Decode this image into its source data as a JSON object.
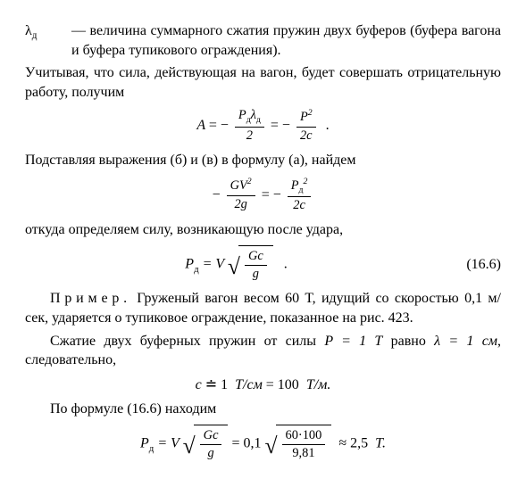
{
  "def": {
    "term_sym": "λ",
    "term_sub": "д",
    "body": "— величина суммарного сжатия пружин двух буферов (буфера вагона и буфера тупикового ограждения)."
  },
  "p1": "Учитывая, что сила, действующая на вагон, будет совершать отрицательную работу, получим",
  "p2": "Подставляя выражения (б) и (в) в формулу (а), найдем",
  "p3": "откуда определяем силу, возникающую после удара,",
  "eq_num": "(16.6)",
  "example_label": "Пример.",
  "p4": " Груженый вагон весом 60 Т, идущий со скоростью 0,1 м/сек, ударяется о тупиковое ограждение, показанное на рис. 423.",
  "p5_a": "Сжатие двух буферных пружин от силы ",
  "p5_b": "P = 1 Т",
  "p5_c": " равно ",
  "p5_d": "λ = 1 см",
  "p5_e": ", следовательно,",
  "p6": "По формуле (16.6) находим",
  "eq1": {
    "A": "A",
    "eq": "= −",
    "f1_num_P": "P",
    "f1_num_sub": "д",
    "f1_num_l": "λ",
    "f1_num_lsub": "д",
    "f1_den": "2",
    "mid": "= −",
    "f2_num_P": "P",
    "f2_num_sup": "2",
    "f2_den": "2c",
    "dot": "."
  },
  "eq2": {
    "pre": "−",
    "f1_num_G": "GV",
    "f1_num_sup": "2",
    "f1_den": "2g",
    "mid": "= −",
    "f2_num_P": "P",
    "f2_num_sub": "д",
    "f2_num_sup": "2",
    "f2_den": "2c"
  },
  "eq3": {
    "P": "P",
    "sub": "д",
    "eq": "= V",
    "sq_num": "Gc",
    "sq_den": "g",
    "dot": "."
  },
  "eq4": {
    "c": "c",
    "eqdot": "≐",
    "v1": "1",
    "u1": "Т/см",
    "eq": "= 100",
    "u2": "Т/м."
  },
  "eq5": {
    "P": "P",
    "sub": "д",
    "eq": "= V",
    "sq_num": "Gc",
    "sq_den": "g",
    "mid": "= 0,1",
    "sq2_num": "60·100",
    "sq2_den": "9,81",
    "approx": "≈ 2,5",
    "unit": "Т."
  }
}
